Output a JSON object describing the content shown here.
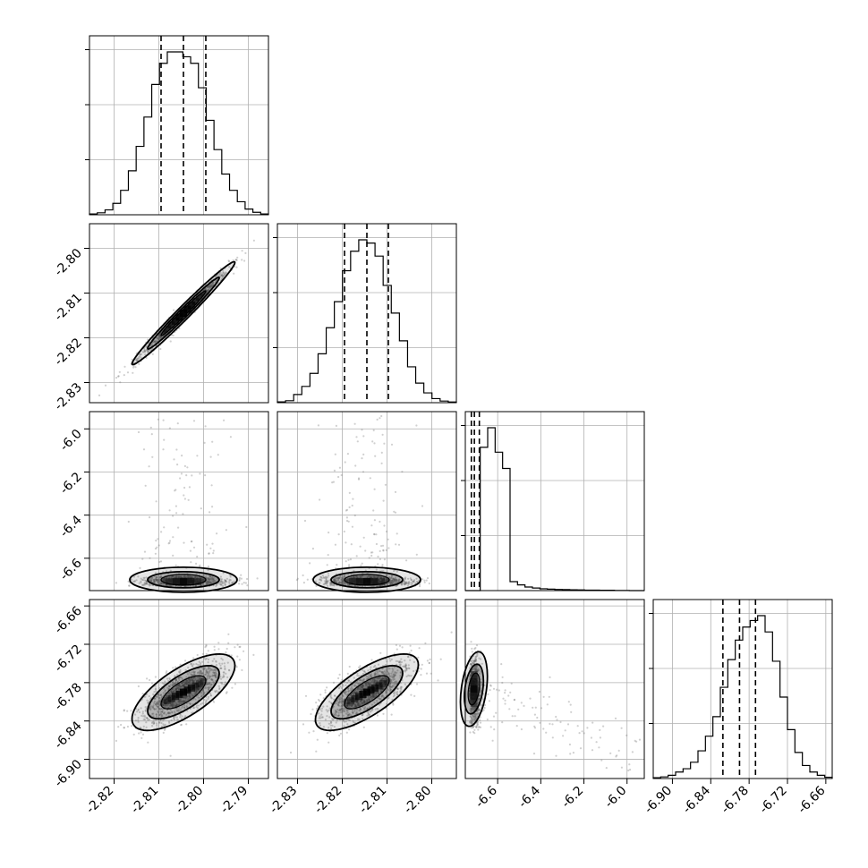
{
  "chart_data": {
    "type": "corner",
    "grid": true,
    "colors": {
      "line": "#000000",
      "grid": "#b0b0b0",
      "points": "#777777",
      "density": "#000000"
    },
    "params": [
      {
        "range": [
          -2.8255,
          -2.7855
        ],
        "ticks": [
          "-2.82",
          "-2.81",
          "-2.80",
          "-2.79"
        ],
        "tick_values": [
          -2.82,
          -2.81,
          -2.8,
          -2.79
        ],
        "mean": -2.8045,
        "sigma": 0.005,
        "quantiles": [
          -2.8095,
          -2.8045,
          -2.7995
        ]
      },
      {
        "range": [
          -2.8345,
          -2.7945
        ],
        "ticks": [
          "-2.83",
          "-2.82",
          "-2.81",
          "-2.80"
        ],
        "tick_values": [
          -2.83,
          -2.82,
          -2.81,
          -2.8
        ],
        "mean": -2.8145,
        "sigma": 0.005,
        "quantiles": [
          -2.8195,
          -2.8145,
          -2.8097
        ]
      },
      {
        "range": [
          -6.75,
          -5.92
        ],
        "ticks": [
          "-6.6",
          "-6.4",
          "-6.2",
          "-6.0"
        ],
        "tick_values": [
          -6.6,
          -6.4,
          -6.2,
          -6.0
        ],
        "ytick_values": [
          -6.6,
          -6.4,
          -6.2,
          -6.0
        ],
        "quantiles": [
          -6.722,
          -6.708,
          -6.685
        ]
      },
      {
        "range": [
          -6.93,
          -6.65
        ],
        "ticks": [
          "-6.90",
          "-6.84",
          "-6.78",
          "-6.72",
          "-6.66"
        ],
        "tick_values": [
          -6.9,
          -6.84,
          -6.78,
          -6.72,
          -6.66
        ],
        "ytick_values": [
          -6.9,
          -6.84,
          -6.78,
          -6.72,
          -6.66
        ],
        "mean": -6.795,
        "sigma": 0.026,
        "quantiles": [
          -6.821,
          -6.795,
          -6.77
        ]
      }
    ],
    "histograms": [
      [
        0.005,
        0.012,
        0.03,
        0.07,
        0.15,
        0.27,
        0.42,
        0.6,
        0.8,
        0.93,
        1.0,
        1.0,
        0.97,
        0.93,
        0.78,
        0.58,
        0.4,
        0.25,
        0.15,
        0.08,
        0.035,
        0.015,
        0.005
      ],
      [
        0.005,
        0.012,
        0.05,
        0.1,
        0.18,
        0.3,
        0.46,
        0.62,
        0.81,
        0.93,
        1.0,
        0.98,
        0.9,
        0.72,
        0.55,
        0.38,
        0.22,
        0.12,
        0.06,
        0.025,
        0.01,
        0.004
      ],
      [
        0.0,
        0.0,
        0.88,
        1.0,
        0.85,
        0.75,
        0.055,
        0.035,
        0.022,
        0.016,
        0.011,
        0.009,
        0.007,
        0.006,
        0.005,
        0.004,
        0.003,
        0.003,
        0.002,
        0.002,
        0.001,
        0.001,
        0.0,
        0.0
      ],
      [
        0.005,
        0.01,
        0.02,
        0.04,
        0.06,
        0.1,
        0.17,
        0.26,
        0.38,
        0.56,
        0.73,
        0.85,
        0.93,
        0.97,
        1.0,
        0.9,
        0.72,
        0.5,
        0.3,
        0.16,
        0.08,
        0.04,
        0.02,
        0.008
      ]
    ],
    "correlations": {
      "0-1": 0.985,
      "0-3": 0.7,
      "1-3": 0.72
    }
  }
}
